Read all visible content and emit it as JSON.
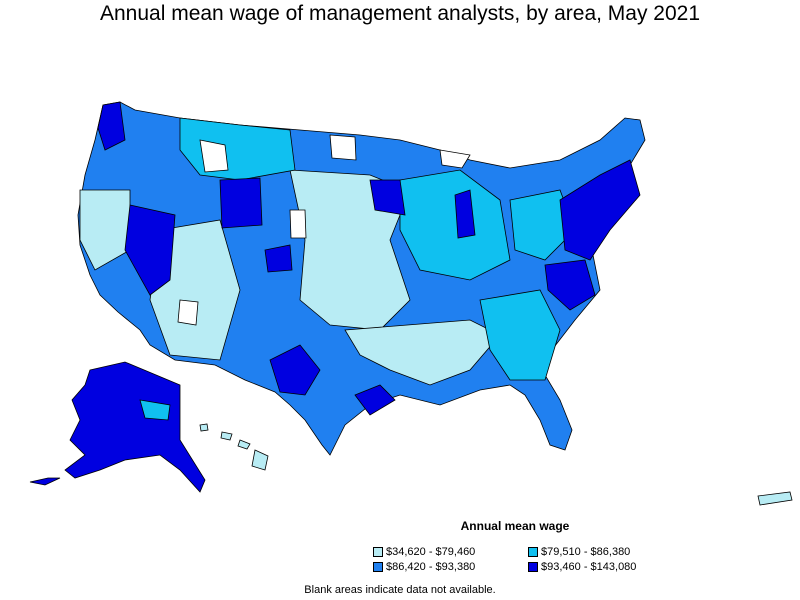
{
  "title": "Annual mean wage of management analysts, by area, May 2021",
  "legend": {
    "title": "Annual mean wage",
    "items": [
      {
        "label": "$34,620 - $79,460",
        "color": "#b8ecf4"
      },
      {
        "label": "$79,510 - $86,380",
        "color": "#10c0f0"
      },
      {
        "label": "$86,420 - $93,380",
        "color": "#2080f0"
      },
      {
        "label": "$93,460 - $143,080",
        "color": "#0000e0"
      }
    ]
  },
  "footnote": "Blank areas indicate data not available."
}
